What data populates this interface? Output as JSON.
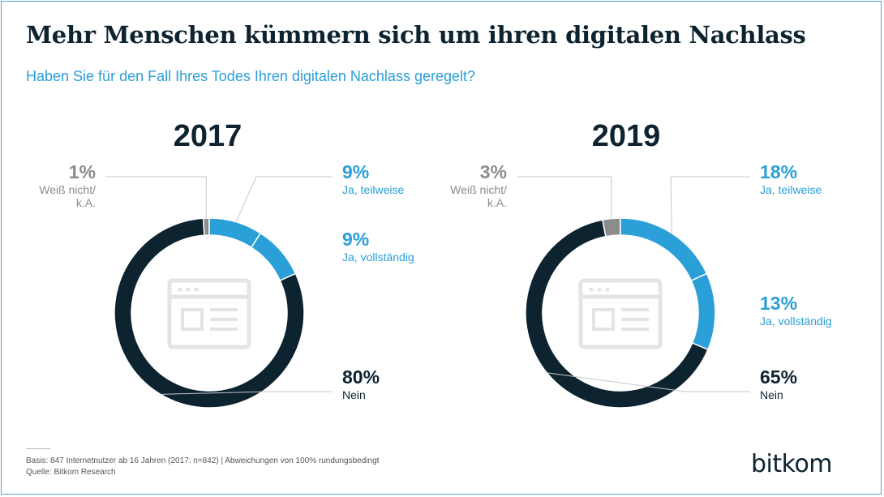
{
  "header": {
    "title": "Mehr Menschen kümmern sich um ihren digitalen Nachlass",
    "subtitle": "Haben Sie für den Fall Ihres Todes Ihren digitalen Nachlass geregelt?"
  },
  "chart_data": [
    {
      "type": "pie",
      "title": "2017",
      "slices": [
        {
          "label": "Weiß nicht/ k.A.",
          "value": 1,
          "color": "#8c8c8c"
        },
        {
          "label": "Ja, teilweise",
          "value": 9,
          "color": "#2a9fd8"
        },
        {
          "label": "Ja, vollständig",
          "value": 9,
          "color": "#2a9fd8"
        },
        {
          "label": "Nein",
          "value": 80,
          "color": "#0d2330"
        }
      ],
      "center_icon": "browser-window-icon"
    },
    {
      "type": "pie",
      "title": "2019",
      "slices": [
        {
          "label": "Weiß nicht/ k.A.",
          "value": 3,
          "color": "#8c8c8c"
        },
        {
          "label": "Ja, teilweise",
          "value": 18,
          "color": "#2a9fd8"
        },
        {
          "label": "Ja, vollständig",
          "value": 13,
          "color": "#2a9fd8"
        },
        {
          "label": "Nein",
          "value": 65,
          "color": "#0d2330"
        }
      ],
      "center_icon": "browser-window-icon"
    }
  ],
  "footer": {
    "basis": "Basis: 847 Internetnutzer ab 16 Jahren (2017: n=842) | Abweichungen von 100% rundungsbedingt",
    "source": "Quelle: Bitkom Research"
  },
  "logo": {
    "text": "bitkom"
  }
}
